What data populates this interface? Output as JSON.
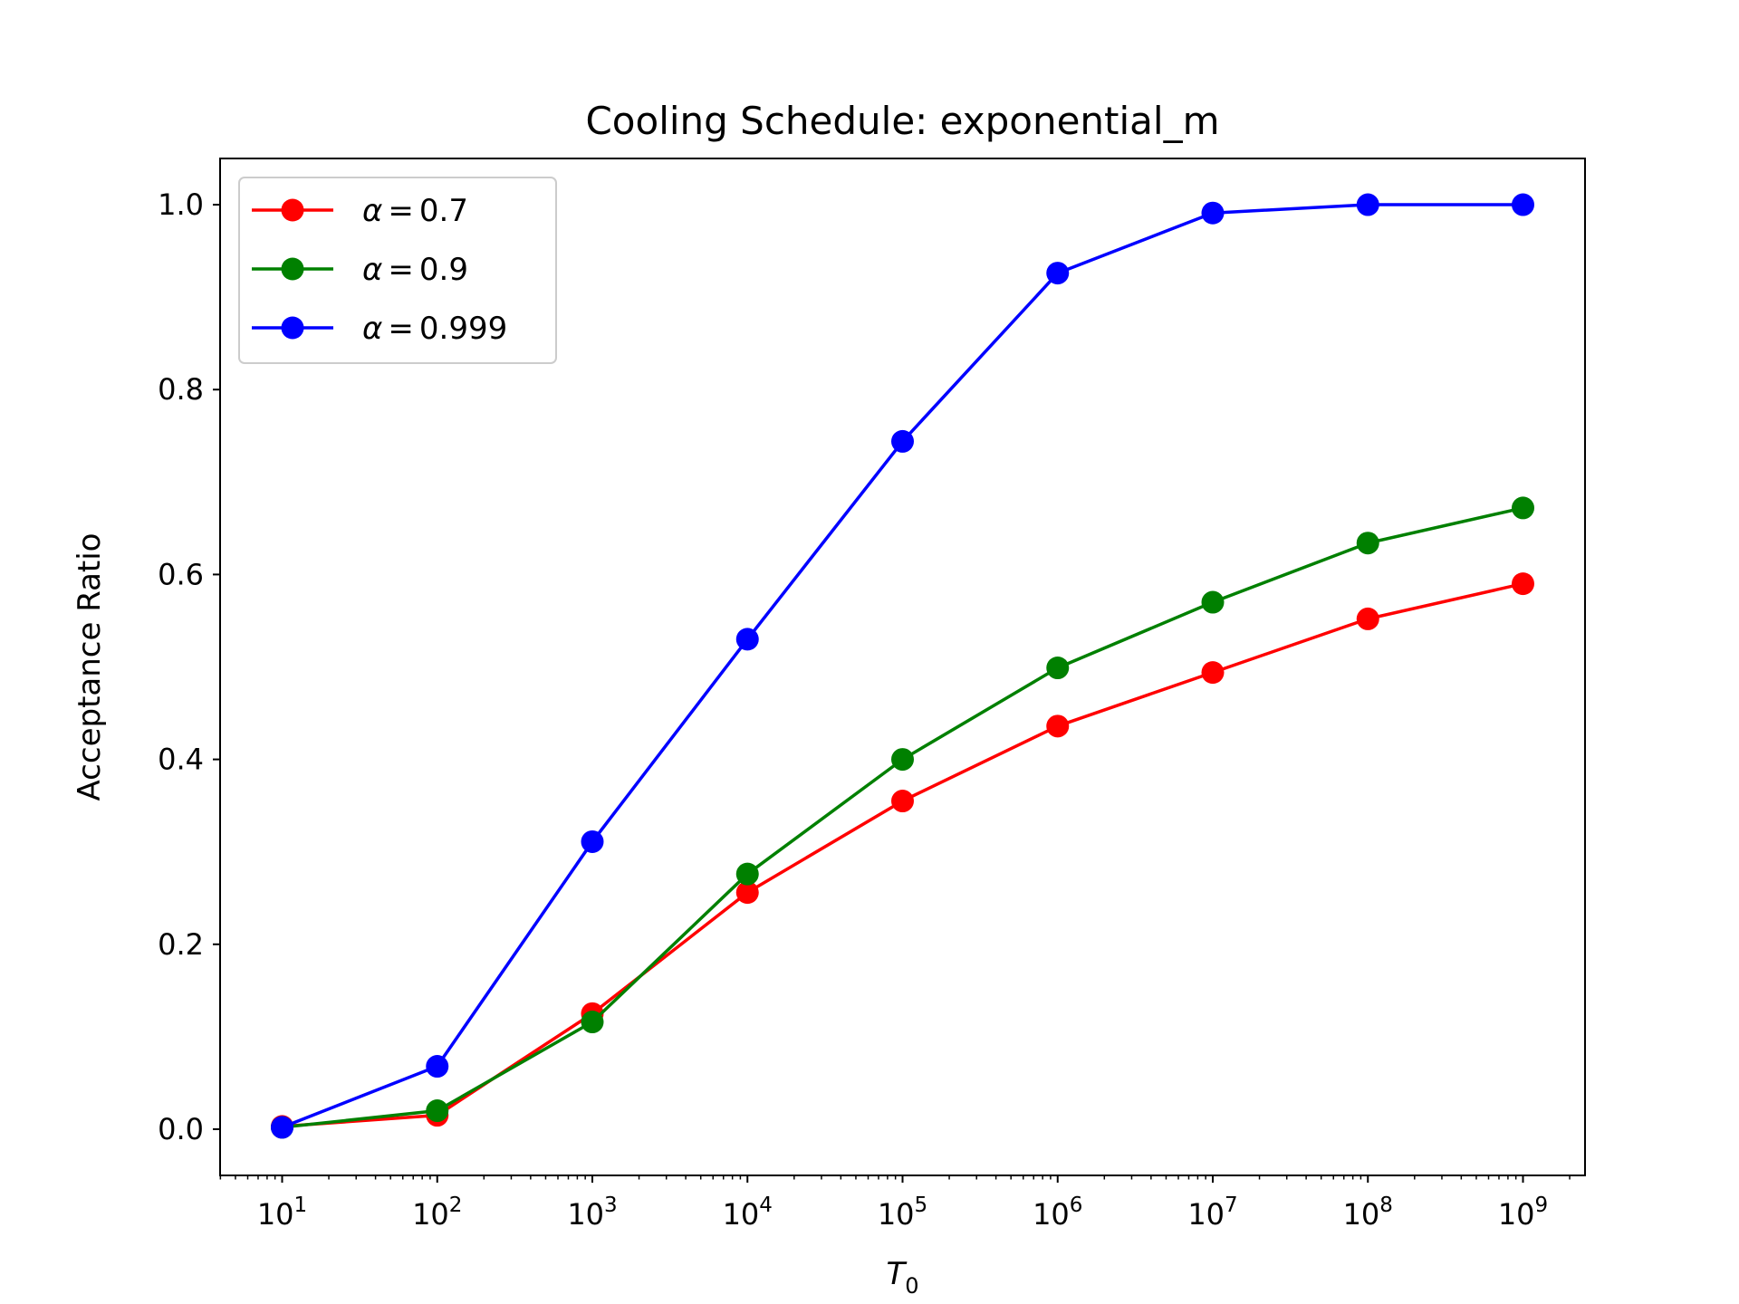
{
  "chart_data": {
    "type": "line",
    "title": "Cooling Schedule: exponential_m",
    "xlabel": "T",
    "xlabel_sub": "0",
    "ylabel": "Acceptance Ratio",
    "xscale": "log",
    "x": [
      10,
      100,
      1000,
      10000,
      100000,
      1000000,
      10000000,
      100000000,
      1000000000
    ],
    "x_tick_base": "10",
    "x_tick_exponents": [
      "1",
      "2",
      "3",
      "4",
      "5",
      "6",
      "7",
      "8",
      "9"
    ],
    "y_ticks": [
      "0.0",
      "0.2",
      "0.4",
      "0.6",
      "0.8",
      "1.0"
    ],
    "ylim": [
      -0.05,
      1.05
    ],
    "grid": false,
    "legend_position": "upper-left",
    "marker": "circle",
    "series": [
      {
        "name": "α = 0.7",
        "legend_symbol": "α",
        "legend_value": "0.7",
        "color": "#ff0000",
        "values": [
          0.003,
          0.015,
          0.125,
          0.256,
          0.355,
          0.436,
          0.494,
          0.552,
          0.59
        ]
      },
      {
        "name": "α = 0.9",
        "legend_symbol": "α",
        "legend_value": "0.9",
        "color": "#008000",
        "values": [
          0.002,
          0.02,
          0.116,
          0.276,
          0.4,
          0.499,
          0.57,
          0.634,
          0.672
        ]
      },
      {
        "name": "α = 0.999",
        "legend_symbol": "α",
        "legend_value": "0.999",
        "color": "#0000ff",
        "values": [
          0.002,
          0.068,
          0.311,
          0.53,
          0.744,
          0.926,
          0.991,
          1.0,
          1.0
        ]
      }
    ]
  }
}
